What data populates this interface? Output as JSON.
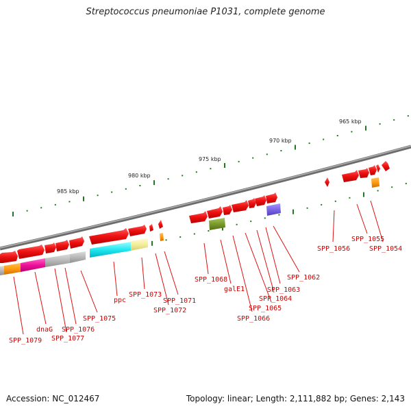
{
  "title": "Streptococcus pneumoniae P1031, complete genome",
  "accession": "Accession: NC_012467",
  "summary": "Topology: linear; Length: 2,111,882 bp; Genes: 2,143",
  "colors": {
    "backbone": "#8a8a8a",
    "gene_forward": "#ee1111",
    "ticks": "#227722",
    "label": "#cc0000"
  },
  "kbp_labels": [
    "965 kbp",
    "970 kbp",
    "975 kbp",
    "980 kbp",
    "985 kbp"
  ],
  "gene_labels": [
    "SPP_1079",
    "dnaG",
    "SPP_1077",
    "SPP_1076",
    "SPP_1075",
    "ppc",
    "SPP_1073",
    "SPP_1072",
    "SPP_1071",
    "SPP_1068",
    "galE1",
    "SPP_1066",
    "SPP_1065",
    "SPP_1064",
    "SPP_1063",
    "SPP_1062",
    "SPP_1056",
    "SPP_1055",
    "SPP_1054"
  ]
}
